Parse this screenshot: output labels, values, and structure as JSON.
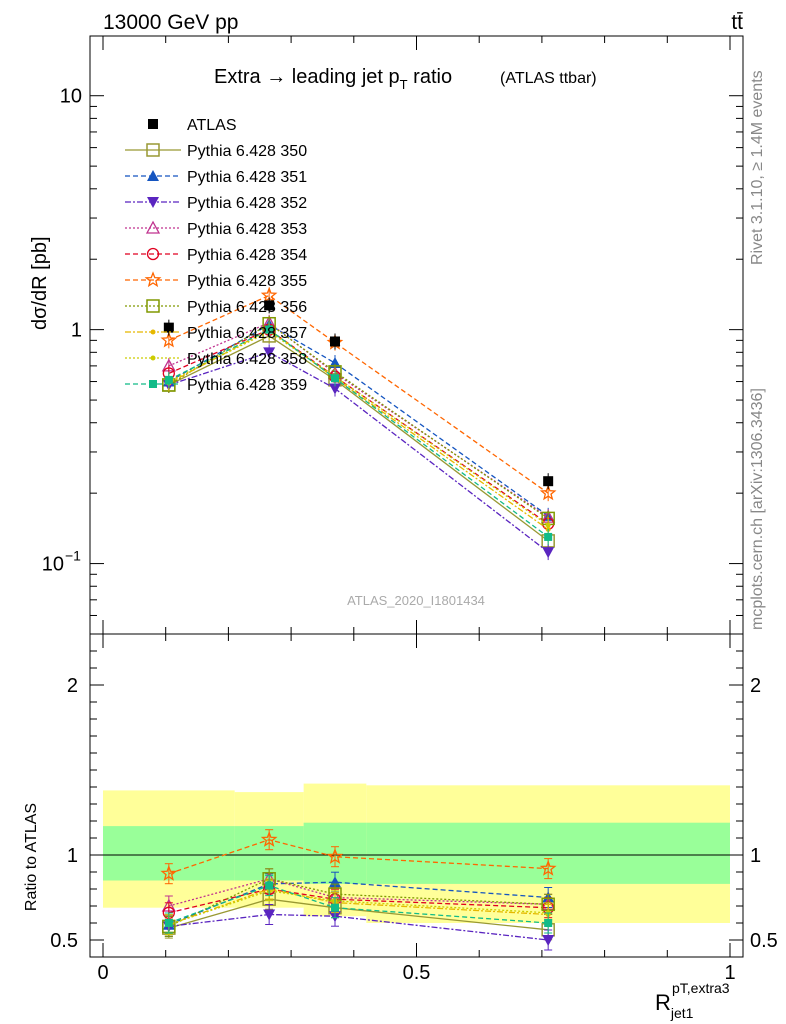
{
  "header": {
    "left": "13000 GeV pp",
    "right": "tt̄"
  },
  "side_text": {
    "rivet": "Rivet 3.1.10, ≥ 1.4M events",
    "mcplots": "mcplots.cern.ch [arXiv:1306.3436]"
  },
  "chart_data": {
    "type": "line",
    "title": "Extra → leading jet p",
    "title_sub": "T",
    "title_tail": " ratio",
    "title_note": "(ATLAS ttbar)",
    "analysis": "ATLAS_2020_I1801434",
    "ylabel_main": "dσ/dR [pb]",
    "ylabel_ratio": "Ratio to ATLAS",
    "xlabel": "R",
    "xlabel_sup": "pT,extra3",
    "xlabel_sub": "jet1",
    "xlim": [
      0,
      1
    ],
    "ylim_main": [
      0.05,
      18
    ],
    "ylim_ratio": [
      0.4,
      2.3
    ],
    "log_y_main": true,
    "x": [
      0.105,
      0.265,
      0.37,
      0.71
    ],
    "bin_edges": [
      0,
      0.21,
      0.32,
      0.42,
      1.0
    ],
    "x_ticks": [
      "0",
      "0.5",
      "1"
    ],
    "y_ticks_main": [
      "10",
      "1"
    ],
    "y_ticks_ratio": [
      "0.5",
      "1",
      "2"
    ],
    "data": {
      "name": "ATLAS",
      "values": [
        1.02,
        1.27,
        0.89,
        0.225
      ],
      "color": "#000000"
    },
    "bands": {
      "inner": [
        [
          0.85,
          1.17
        ],
        [
          0.85,
          1.17
        ],
        [
          0.83,
          1.19
        ],
        [
          0.83,
          1.19
        ]
      ],
      "outer": [
        [
          0.69,
          1.38
        ],
        [
          0.69,
          1.37
        ],
        [
          0.64,
          1.42
        ],
        [
          0.6,
          1.41
        ]
      ],
      "inner_color": "#99ff99",
      "outer_color": "#ffff99"
    },
    "series": [
      {
        "name": "Pythia 6.428 350",
        "color": "#999933",
        "dash": "",
        "marker": "square-open",
        "values": [
          0.58,
          0.94,
          0.61,
          0.125
        ],
        "ratio": [
          0.57,
          0.74,
          0.69,
          0.56
        ]
      },
      {
        "name": "Pythia 6.428 351",
        "color": "#1555c0",
        "dash": "5,3",
        "marker": "triangle-up",
        "values": [
          0.6,
          1.05,
          0.72,
          0.16
        ],
        "ratio": [
          0.59,
          0.83,
          0.84,
          0.75
        ]
      },
      {
        "name": "Pythia 6.428 352",
        "color": "#5a25c0",
        "dash": "6,2,2,2",
        "marker": "triangle-down",
        "values": [
          0.58,
          0.8,
          0.56,
          0.112
        ],
        "ratio": [
          0.58,
          0.65,
          0.64,
          0.5
        ]
      },
      {
        "name": "Pythia 6.428 353",
        "color": "#c0338f",
        "dash": "2,2",
        "marker": "triangle-up-open",
        "values": [
          0.7,
          1.07,
          0.65,
          0.158
        ],
        "ratio": [
          0.7,
          0.86,
          0.75,
          0.71
        ]
      },
      {
        "name": "Pythia 6.428 354",
        "color": "#e00020",
        "dash": "5,3",
        "marker": "circle-open",
        "values": [
          0.65,
          1.0,
          0.63,
          0.148
        ],
        "ratio": [
          0.66,
          0.8,
          0.74,
          0.69
        ]
      },
      {
        "name": "Pythia 6.428 355",
        "color": "#ff6600",
        "dash": "5,3",
        "marker": "star-open",
        "values": [
          0.9,
          1.4,
          0.88,
          0.2
        ],
        "ratio": [
          0.89,
          1.09,
          0.99,
          0.92
        ]
      },
      {
        "name": "Pythia 6.428 356",
        "color": "#809900",
        "dash": "2,2",
        "marker": "square-open",
        "values": [
          0.58,
          1.06,
          0.66,
          0.156
        ],
        "ratio": [
          0.58,
          0.86,
          0.77,
          0.71
        ]
      },
      {
        "name": "Pythia 6.428 357",
        "color": "#e6b800",
        "dash": "6,2,2,2",
        "marker": "dot",
        "values": [
          0.59,
          1.0,
          0.62,
          0.14
        ],
        "ratio": [
          0.59,
          0.8,
          0.72,
          0.65
        ]
      },
      {
        "name": "Pythia 6.428 358",
        "color": "#cccc00",
        "dash": "2,2",
        "marker": "dot",
        "values": [
          0.6,
          0.98,
          0.63,
          0.146
        ],
        "ratio": [
          0.59,
          0.79,
          0.73,
          0.66
        ]
      },
      {
        "name": "Pythia 6.428 359",
        "color": "#11bb88",
        "dash": "5,3",
        "marker": "square",
        "values": [
          0.61,
          1.0,
          0.62,
          0.13
        ],
        "ratio": [
          0.6,
          0.82,
          0.69,
          0.6
        ]
      }
    ]
  }
}
